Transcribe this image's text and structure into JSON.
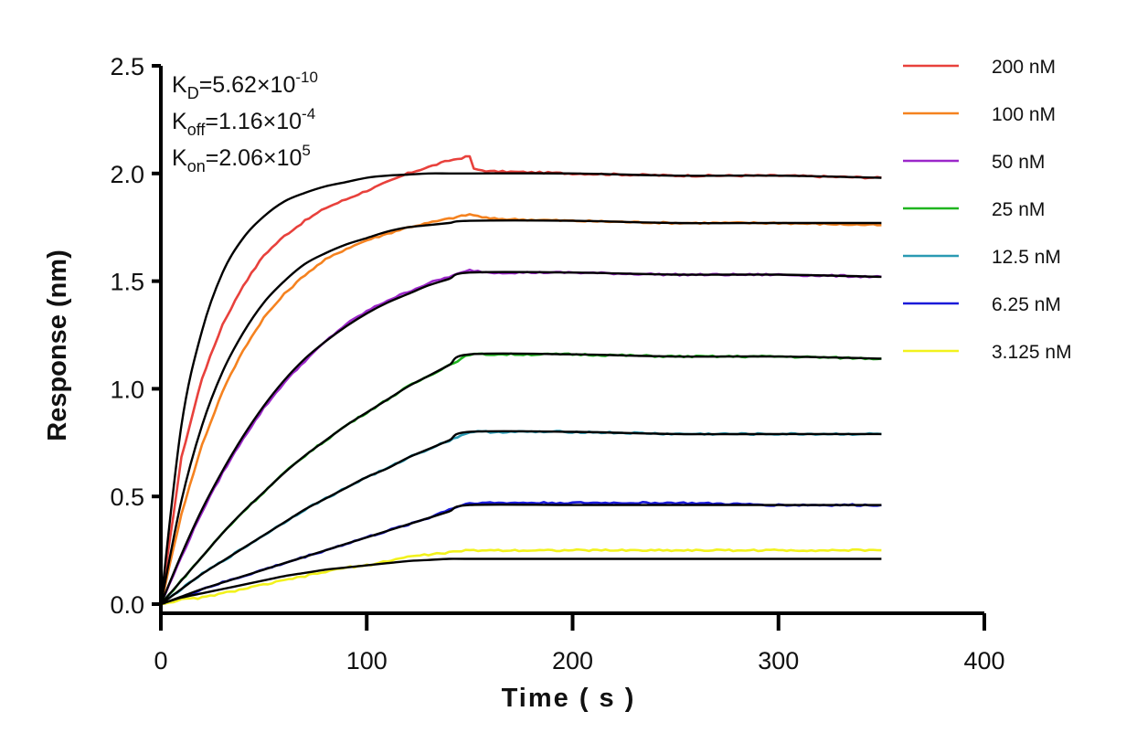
{
  "chart_data": {
    "type": "line",
    "title": "",
    "xlabel": "Time ( s )",
    "ylabel": "Response (nm)",
    "xlim": [
      0,
      400
    ],
    "ylim": [
      0,
      2.5
    ],
    "x_ticks": [
      0,
      100,
      200,
      300,
      400
    ],
    "x_tick_labels": [
      "0",
      "100",
      "200",
      "300",
      "400"
    ],
    "y_ticks": [
      0,
      0.5,
      1.0,
      1.5,
      2.0,
      2.5
    ],
    "y_tick_labels": [
      "0.0",
      "0.5",
      "1.0",
      "1.5",
      "2.0",
      "2.5"
    ],
    "grid": false,
    "legend_position": "right",
    "annotations": [
      {
        "base": "K",
        "sub": "D",
        "eq": "=5.62×10",
        "sup": "-10"
      },
      {
        "base": "K",
        "sub": "off",
        "eq": "=1.16×10",
        "sup": "-4"
      },
      {
        "base": "K",
        "sub": "on",
        "eq": "=2.06×10",
        "sup": "5"
      }
    ],
    "fit_color": "#000000",
    "series": [
      {
        "name": "200 nM",
        "color": "#e8413c",
        "x": [
          0,
          10,
          20,
          30,
          40,
          50,
          60,
          70,
          80,
          90,
          100,
          110,
          120,
          130,
          140,
          150,
          152,
          160,
          200,
          250,
          300,
          350
        ],
        "y": [
          0,
          0.68,
          1.05,
          1.3,
          1.48,
          1.62,
          1.71,
          1.78,
          1.84,
          1.88,
          1.92,
          1.96,
          2.0,
          2.03,
          2.06,
          2.08,
          2.02,
          2.01,
          2.0,
          1.99,
          1.99,
          1.98
        ]
      },
      {
        "name": "100 nM",
        "color": "#f5821f",
        "x": [
          0,
          10,
          20,
          30,
          40,
          50,
          60,
          70,
          80,
          90,
          100,
          110,
          120,
          130,
          140,
          150,
          160,
          200,
          250,
          300,
          350
        ],
        "y": [
          0,
          0.42,
          0.74,
          0.99,
          1.18,
          1.33,
          1.44,
          1.53,
          1.6,
          1.65,
          1.69,
          1.72,
          1.75,
          1.77,
          1.79,
          1.81,
          1.79,
          1.78,
          1.77,
          1.77,
          1.76
        ]
      },
      {
        "name": "50 nM",
        "color": "#9b27c9",
        "x": [
          0,
          10,
          20,
          30,
          40,
          50,
          60,
          70,
          80,
          90,
          100,
          110,
          120,
          130,
          140,
          150,
          160,
          200,
          250,
          300,
          350
        ],
        "y": [
          0,
          0.22,
          0.43,
          0.61,
          0.77,
          0.91,
          1.03,
          1.13,
          1.22,
          1.3,
          1.36,
          1.41,
          1.45,
          1.49,
          1.52,
          1.55,
          1.54,
          1.54,
          1.53,
          1.53,
          1.52
        ]
      },
      {
        "name": "25 nM",
        "color": "#1fb51f",
        "x": [
          0,
          10,
          20,
          30,
          40,
          50,
          60,
          70,
          80,
          90,
          100,
          110,
          120,
          130,
          140,
          150,
          160,
          200,
          250,
          300,
          350
        ],
        "y": [
          0,
          0.11,
          0.22,
          0.33,
          0.43,
          0.52,
          0.61,
          0.69,
          0.76,
          0.83,
          0.89,
          0.95,
          1.01,
          1.06,
          1.11,
          1.16,
          1.16,
          1.16,
          1.15,
          1.15,
          1.14
        ]
      },
      {
        "name": "12.5 nM",
        "color": "#2a9ab3",
        "x": [
          0,
          10,
          20,
          30,
          40,
          50,
          60,
          70,
          80,
          90,
          100,
          110,
          120,
          130,
          140,
          150,
          160,
          200,
          250,
          300,
          350
        ],
        "y": [
          0,
          0.07,
          0.14,
          0.2,
          0.26,
          0.32,
          0.38,
          0.44,
          0.49,
          0.54,
          0.59,
          0.63,
          0.68,
          0.72,
          0.76,
          0.8,
          0.8,
          0.8,
          0.79,
          0.79,
          0.79
        ]
      },
      {
        "name": "6.25 nM",
        "color": "#1a1ad9",
        "x": [
          0,
          10,
          20,
          30,
          40,
          50,
          60,
          70,
          80,
          90,
          100,
          110,
          120,
          130,
          140,
          150,
          160,
          200,
          250,
          300,
          350
        ],
        "y": [
          0,
          0.03,
          0.07,
          0.1,
          0.13,
          0.16,
          0.19,
          0.22,
          0.25,
          0.28,
          0.31,
          0.34,
          0.37,
          0.4,
          0.44,
          0.47,
          0.47,
          0.47,
          0.47,
          0.46,
          0.46
        ]
      },
      {
        "name": "3.125 nM",
        "color": "#f2f21d",
        "x": [
          0,
          10,
          20,
          30,
          40,
          50,
          60,
          70,
          80,
          90,
          100,
          110,
          120,
          130,
          140,
          150,
          160,
          200,
          250,
          300,
          350
        ],
        "y": [
          0,
          0.02,
          0.03,
          0.05,
          0.07,
          0.09,
          0.11,
          0.13,
          0.15,
          0.17,
          0.18,
          0.2,
          0.22,
          0.23,
          0.24,
          0.25,
          0.25,
          0.25,
          0.25,
          0.25,
          0.25
        ]
      }
    ],
    "fits": [
      {
        "x": [
          0,
          10,
          20,
          30,
          40,
          50,
          60,
          70,
          80,
          90,
          100,
          110,
          120,
          130,
          140,
          150,
          200,
          250,
          300,
          350
        ],
        "y": [
          0,
          0.83,
          1.27,
          1.54,
          1.7,
          1.8,
          1.87,
          1.91,
          1.94,
          1.96,
          1.98,
          1.99,
          1.995,
          2.0,
          2.0,
          2.0,
          2.0,
          1.99,
          1.99,
          1.98
        ]
      },
      {
        "x": [
          0,
          10,
          20,
          30,
          40,
          50,
          60,
          70,
          80,
          90,
          100,
          110,
          120,
          130,
          140,
          150,
          200,
          250,
          300,
          350
        ],
        "y": [
          0,
          0.48,
          0.83,
          1.08,
          1.26,
          1.4,
          1.5,
          1.58,
          1.63,
          1.67,
          1.7,
          1.73,
          1.75,
          1.76,
          1.77,
          1.78,
          1.78,
          1.77,
          1.77,
          1.77
        ]
      },
      {
        "x": [
          0,
          10,
          20,
          30,
          40,
          50,
          60,
          70,
          80,
          90,
          100,
          110,
          120,
          130,
          140,
          150,
          200,
          250,
          300,
          350
        ],
        "y": [
          0,
          0.23,
          0.44,
          0.62,
          0.78,
          0.92,
          1.04,
          1.14,
          1.22,
          1.29,
          1.35,
          1.4,
          1.44,
          1.48,
          1.51,
          1.54,
          1.54,
          1.53,
          1.53,
          1.52
        ]
      },
      {
        "x": [
          0,
          10,
          20,
          30,
          40,
          50,
          60,
          70,
          80,
          90,
          100,
          110,
          120,
          130,
          140,
          150,
          200,
          250,
          300,
          350
        ],
        "y": [
          0,
          0.11,
          0.22,
          0.33,
          0.43,
          0.52,
          0.61,
          0.69,
          0.76,
          0.83,
          0.89,
          0.95,
          1.01,
          1.06,
          1.11,
          1.16,
          1.16,
          1.15,
          1.15,
          1.14
        ]
      },
      {
        "x": [
          0,
          10,
          20,
          30,
          40,
          50,
          60,
          70,
          80,
          90,
          100,
          110,
          120,
          130,
          140,
          150,
          200,
          250,
          300,
          350
        ],
        "y": [
          0,
          0.07,
          0.14,
          0.2,
          0.26,
          0.32,
          0.38,
          0.44,
          0.49,
          0.54,
          0.59,
          0.63,
          0.68,
          0.72,
          0.76,
          0.8,
          0.8,
          0.79,
          0.79,
          0.79
        ]
      },
      {
        "x": [
          0,
          10,
          20,
          30,
          40,
          50,
          60,
          70,
          80,
          90,
          100,
          110,
          120,
          130,
          140,
          150,
          200,
          250,
          300,
          350
        ],
        "y": [
          0,
          0.035,
          0.07,
          0.1,
          0.13,
          0.16,
          0.19,
          0.22,
          0.25,
          0.28,
          0.31,
          0.34,
          0.37,
          0.4,
          0.43,
          0.46,
          0.46,
          0.46,
          0.46,
          0.46
        ]
      },
      {
        "x": [
          0,
          10,
          20,
          30,
          40,
          50,
          60,
          70,
          80,
          90,
          100,
          110,
          120,
          130,
          140,
          150,
          200,
          250,
          300,
          350
        ],
        "y": [
          0,
          0.03,
          0.05,
          0.07,
          0.09,
          0.11,
          0.13,
          0.145,
          0.16,
          0.17,
          0.18,
          0.19,
          0.2,
          0.205,
          0.21,
          0.21,
          0.21,
          0.21,
          0.21,
          0.21
        ]
      }
    ]
  }
}
